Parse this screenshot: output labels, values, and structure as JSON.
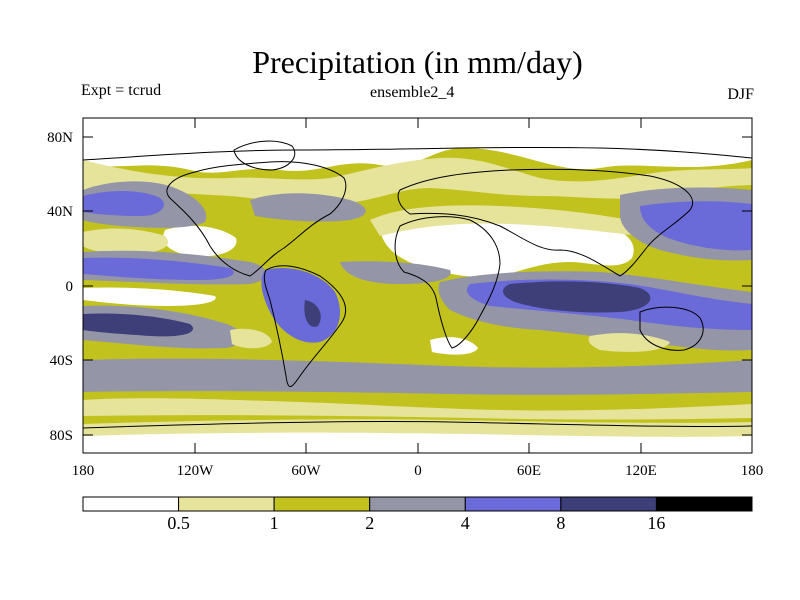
{
  "header": {
    "title": "Precipitation (in mm/day)",
    "experiment": "Expt = tcrud",
    "ensemble": "ensemble2_4",
    "season": "DJF"
  },
  "axes": {
    "lat_labels": [
      "80N",
      "40N",
      "0",
      "40S",
      "80S"
    ],
    "lon_labels": [
      "180",
      "120W",
      "60W",
      "0",
      "60E",
      "120E",
      "180"
    ]
  },
  "colorbar": {
    "thresholds": [
      "0.5",
      "1",
      "2",
      "4",
      "8",
      "16"
    ],
    "colors": [
      "#ffffff",
      "#e6e39a",
      "#c2c21e",
      "#9595a8",
      "#6a6ad8",
      "#3e3e78",
      "#000000"
    ]
  },
  "map_colors": {
    "ocean_base": "#c2c21e",
    "land_outline": "#000000"
  }
}
